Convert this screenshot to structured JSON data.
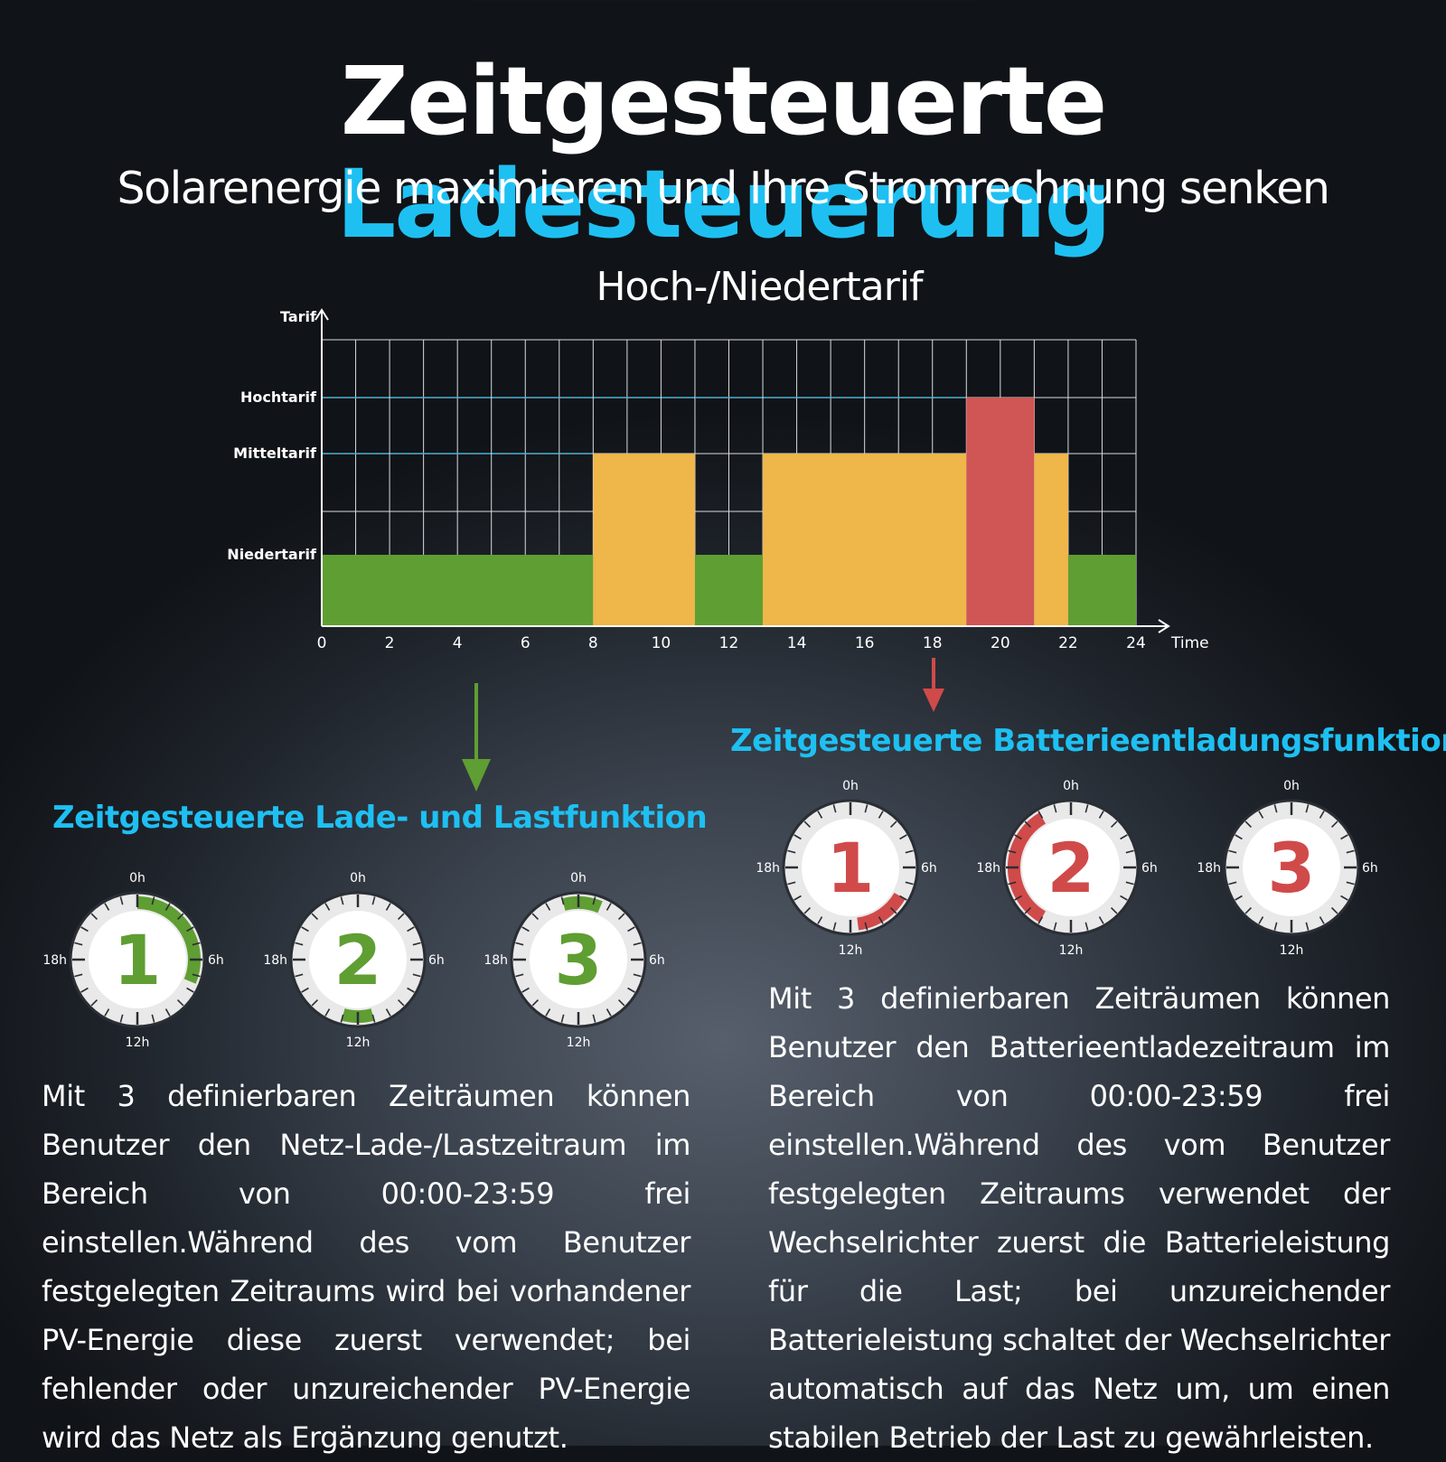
{
  "header": {
    "title_main": "Zeitgesteuerte",
    "title_accent": "Ladesteuerung",
    "subtitle": "Solarenergie maximieren und Ihre Stromrechnung senken"
  },
  "colors": {
    "accent": "#1ec0f2",
    "low": "#5f9e32",
    "mid": "#efb64a",
    "high": "#d05555",
    "dial_green": "#5f9e32",
    "dial_red": "#d04a4a"
  },
  "chart_data": {
    "type": "bar",
    "title": "Hoch-/Niedertarif",
    "xlabel": "Time",
    "ylabel": "Tarif",
    "xlim": [
      0,
      24
    ],
    "x_ticks": [
      0,
      2,
      4,
      6,
      8,
      10,
      12,
      14,
      16,
      18,
      20,
      22,
      24
    ],
    "y_categories": [
      "Niedertarif",
      "Mitteltarif",
      "Hochtarif"
    ],
    "grid": true,
    "segments": [
      {
        "start": 0,
        "end": 8,
        "tariff": "Niedertarif"
      },
      {
        "start": 8,
        "end": 11,
        "tariff": "Mitteltarif"
      },
      {
        "start": 11,
        "end": 13,
        "tariff": "Niedertarif"
      },
      {
        "start": 13,
        "end": 19,
        "tariff": "Mitteltarif"
      },
      {
        "start": 19,
        "end": 21,
        "tariff": "Hochtarif"
      },
      {
        "start": 21,
        "end": 22,
        "tariff": "Mitteltarif"
      },
      {
        "start": 22,
        "end": 24,
        "tariff": "Niedertarif"
      }
    ]
  },
  "dial_labels": {
    "top": "0h",
    "right": "6h",
    "bottom": "12h",
    "left": "18h"
  },
  "charge_section": {
    "title": "Zeitgesteuerte Lade- und Lastfunktion",
    "dials": [
      {
        "number": "1",
        "start_h": 0,
        "end_h": 7.5
      },
      {
        "number": "2",
        "start_h": 11,
        "end_h": 13
      },
      {
        "number": "3",
        "start_h": 23,
        "end_h": 1.5
      }
    ],
    "text": "Mit 3 definierbaren Zeiträumen können Benutzer den Netz-Lade-/Lastzeitraum im Bereich von 00:00-23:59 frei einstellen.Während des vom Benutzer festgelegten Zeitraums wird bei vorhandener PV-Energie diese zuerst verwendet; bei fehlender oder unzureichender PV-Energie wird das Netz als Ergänzung genutzt."
  },
  "discharge_section": {
    "title": "Zeitgesteuerte Batterieentladungsfunktion",
    "dials": [
      {
        "number": "1",
        "start_h": 8,
        "end_h": 11.5
      },
      {
        "number": "2",
        "start_h": 14,
        "end_h": 22
      },
      {
        "number": "3",
        "start_h": 0,
        "end_h": 0
      }
    ],
    "text": "Mit 3 definierbaren Zeiträumen können Benutzer den Batterieentladezeitraum im Bereich von 00:00-23:59 frei einstellen.Während des vom Benutzer festgelegten Zeitraums verwendet der Wechselrichter zuerst die Batterieleistung für die Last; bei unzureichender Batterieleistung schaltet der Wechselrichter automatisch auf das Netz um, um einen stabilen Betrieb der Last zu gewährleisten."
  }
}
